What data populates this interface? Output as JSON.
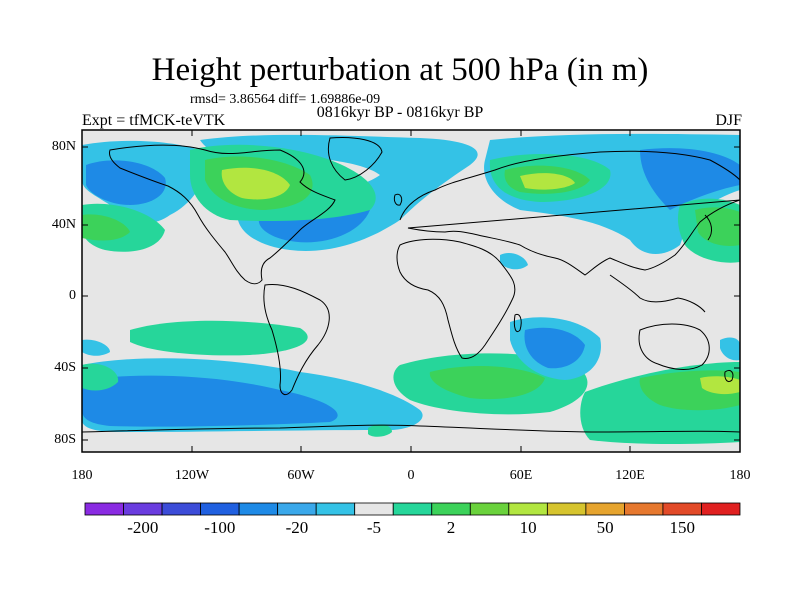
{
  "title": "Height perturbation at 500 hPa (in m)",
  "stats": "rmsd= 3.86564 diff= 1.69886e-09",
  "period": "0816kyr BP - 0816kyr BP",
  "experiment": "Expt = tfMCK-teVTK",
  "season": "DJF",
  "axes": {
    "y_ticks": [
      "80N",
      "40N",
      "0",
      "40S",
      "80S"
    ],
    "x_ticks": [
      "180",
      "120W",
      "60W",
      "0",
      "60E",
      "120E",
      "180"
    ]
  },
  "colorbar": {
    "colors": [
      "#8a2be2",
      "#6a3cdf",
      "#3c4cd8",
      "#2060e0",
      "#1e8ae6",
      "#3aa8ea",
      "#34c2e6",
      "#e6e6e6",
      "#26d69a",
      "#3cd25a",
      "#6ad23c",
      "#b2e640",
      "#d6c42e",
      "#e6a42e",
      "#e6782e",
      "#e24a28",
      "#e02020"
    ],
    "labels": [
      "-200",
      "-100",
      "-20",
      "-5",
      "2",
      "10",
      "50",
      "150"
    ]
  },
  "field_colors": {
    "neutral": "#e6e6e6",
    "neg_light": "#34c2e6",
    "neg_mid": "#1e8ae6",
    "pos_light": "#26d69a",
    "pos_mid": "#3cd25a",
    "pos_high": "#b2e640"
  }
}
